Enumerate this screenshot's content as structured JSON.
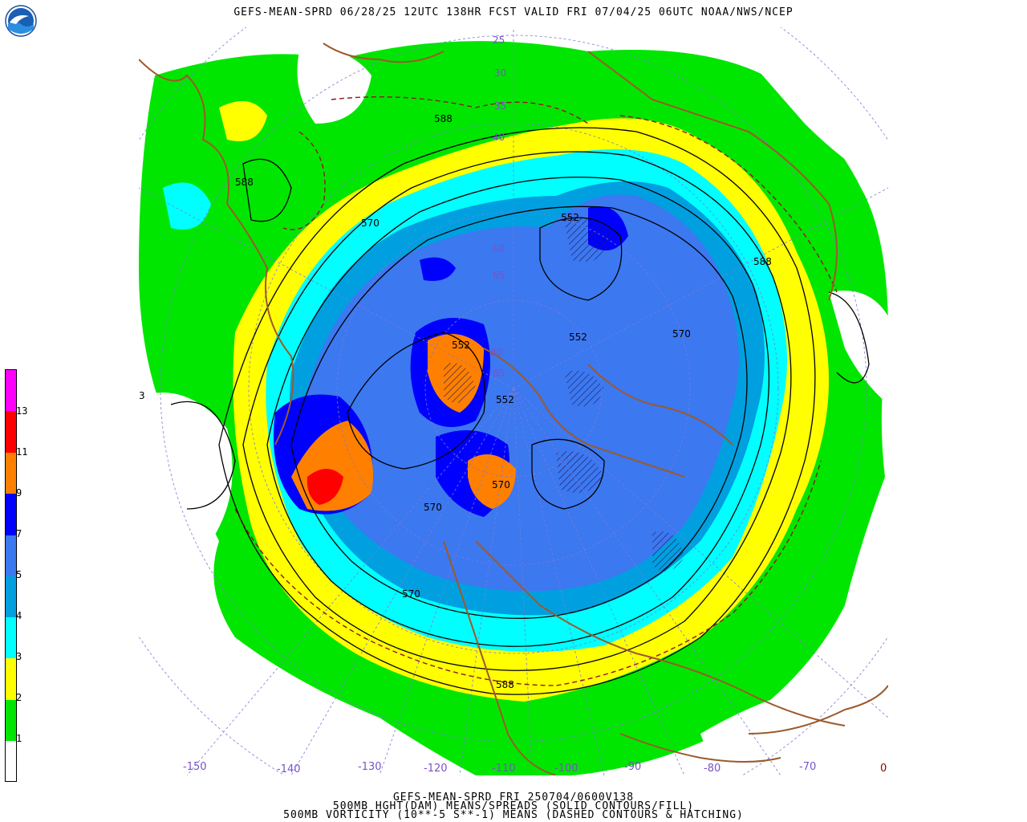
{
  "title": "GEFS-MEAN-SPRD 06/28/25 12UTC 138HR FCST VALID FRI 07/04/25 06UTC NOAA/NWS/NCEP",
  "footer": {
    "line1": "GEFS-MEAN-SPRD FRI 250704/0600V138",
    "line2": "500MB HGHT(DAM) MEANS/SPREADS (SOLID CONTOURS/FILL)",
    "line3": "500MB VORTICITY (10**-5 S**-1) MEANS (DASHED CONTOURS & HATCHING)"
  },
  "logo": {
    "icon": "noaa-logo-icon",
    "text": "NOAA"
  },
  "legend": {
    "labels": [
      "1",
      "2",
      "3",
      "4",
      "5",
      "7",
      "9",
      "11",
      "13"
    ],
    "colors": [
      "#ffffff",
      "#00e600",
      "#ffff00",
      "#00ffff",
      "#00a0e0",
      "#3c78f0",
      "#0000ff",
      "#ff8000",
      "#ff0000",
      "#ff00ff"
    ]
  },
  "contour_labels": [
    "588",
    "588",
    "588",
    "588",
    "570",
    "570",
    "570",
    "570",
    "552",
    "552",
    "552",
    "552",
    "570"
  ],
  "latitude_labels": [
    "25",
    "30",
    "35",
    "40",
    "60",
    "65",
    "80",
    "85"
  ],
  "longitude_labels": [
    "-150",
    "-140",
    "-130",
    "-120",
    "-110",
    "-100",
    "-90",
    "-80",
    "-70",
    "0"
  ],
  "edge_label": "3"
}
